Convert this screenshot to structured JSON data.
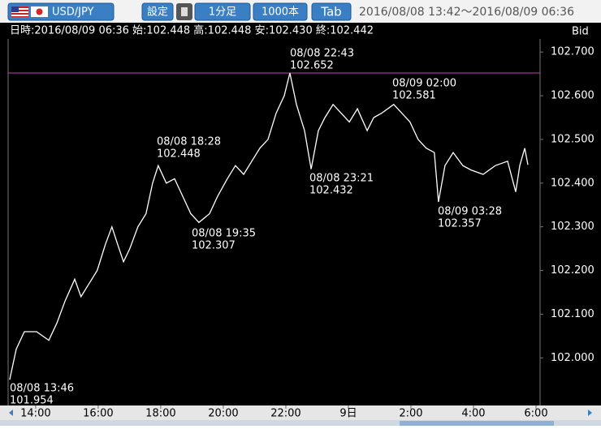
{
  "toolbar": {
    "pair": "USD/JPY",
    "settings": "設定",
    "timeframe": "1分足",
    "count": "1000本",
    "tab": "Tab",
    "range": "2016/08/08 13:42～2016/08/09 06:36"
  },
  "chart_data": {
    "type": "line",
    "info": "日時:2016/08/09 06:36 始:102.448 高:102.448 安:102.430 終:102.442",
    "y_axis_label": "Bid",
    "series": [
      {
        "name": "USD/JPY",
        "color": "#ffffff",
        "x": [
          13.17,
          13.38,
          13.64,
          14.03,
          14.42,
          14.68,
          14.94,
          15.25,
          15.45,
          15.71,
          15.97,
          16.23,
          16.44,
          16.62,
          16.81,
          17.01,
          17.27,
          17.53,
          17.74,
          17.92,
          18.18,
          18.44,
          18.7,
          18.96,
          19.22,
          19.56,
          19.82,
          20.13,
          20.39,
          20.65,
          20.91,
          21.17,
          21.43,
          21.69,
          21.95,
          22.13,
          22.34,
          22.6,
          22.81,
          23.04,
          23.25,
          23.51,
          23.77,
          24.03,
          24.29,
          24.6,
          24.81,
          25.06,
          25.45,
          25.71,
          25.97,
          26.23,
          26.49,
          26.75,
          26.88,
          27.09,
          27.35,
          27.66,
          27.92,
          28.31,
          28.7,
          29.09,
          29.35,
          29.48,
          29.64,
          29.74
        ],
        "values": [
          101.95,
          102.02,
          102.06,
          102.06,
          102.04,
          102.08,
          102.13,
          102.18,
          102.14,
          102.17,
          102.2,
          102.26,
          102.3,
          102.26,
          102.22,
          102.25,
          102.3,
          102.33,
          102.4,
          102.44,
          102.4,
          102.41,
          102.37,
          102.33,
          102.31,
          102.33,
          102.37,
          102.41,
          102.44,
          102.42,
          102.45,
          102.48,
          102.5,
          102.56,
          102.6,
          102.652,
          102.58,
          102.52,
          102.432,
          102.52,
          102.55,
          102.58,
          102.56,
          102.54,
          102.57,
          102.52,
          102.55,
          102.56,
          102.58,
          102.56,
          102.54,
          102.5,
          102.48,
          102.47,
          102.357,
          102.44,
          102.47,
          102.44,
          102.43,
          102.42,
          102.44,
          102.45,
          102.38,
          102.44,
          102.48,
          102.442
        ]
      }
    ],
    "annotations": [
      {
        "time": "08/08 13:46",
        "price": 101.954
      },
      {
        "time": "08/08 18:28",
        "price": 102.448
      },
      {
        "time": "08/08 19:35",
        "price": 102.307
      },
      {
        "time": "08/08 22:43",
        "price": 102.652
      },
      {
        "time": "08/08 23:21",
        "price": 102.432
      },
      {
        "time": "08/09 02:00",
        "price": 102.581
      },
      {
        "time": "08/09 03:28",
        "price": 102.357
      }
    ],
    "high_line_color": "#c040c0",
    "xlim": [
      13.12,
      30.13
    ],
    "ylim": [
      101.891,
      102.73
    ],
    "xticks": [
      {
        "value": 14,
        "label": "14:00"
      },
      {
        "value": 16,
        "label": "16:00"
      },
      {
        "value": 18,
        "label": "18:00"
      },
      {
        "value": 20,
        "label": "20:00"
      },
      {
        "value": 22,
        "label": "22:00"
      },
      {
        "value": 24,
        "label": "9日"
      },
      {
        "value": 26,
        "label": "2:00"
      },
      {
        "value": 28,
        "label": "4:00"
      },
      {
        "value": 30,
        "label": "6:00"
      }
    ],
    "yticks": [
      {
        "value": 102.0,
        "label": "102.000"
      },
      {
        "value": 102.1,
        "label": "102.100"
      },
      {
        "value": 102.2,
        "label": "102.200"
      },
      {
        "value": 102.3,
        "label": "102.300"
      },
      {
        "value": 102.4,
        "label": "102.400"
      },
      {
        "value": 102.5,
        "label": "102.500"
      },
      {
        "value": 102.6,
        "label": "102.600"
      },
      {
        "value": 102.7,
        "label": "102.700"
      }
    ]
  }
}
